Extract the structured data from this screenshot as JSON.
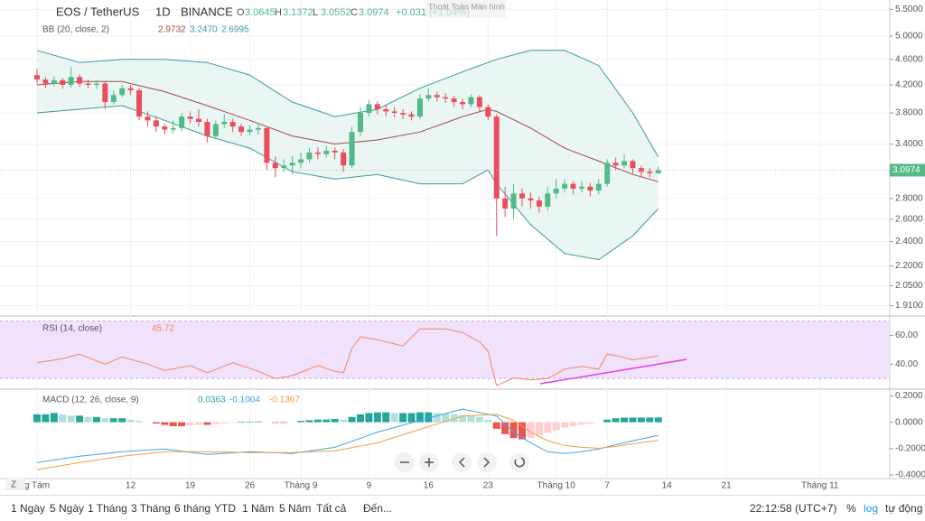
{
  "header": {
    "symbol": "EOS / TetherUS",
    "interval": "1D",
    "exchange": "BINANCE",
    "ohlc": [
      {
        "label": "O",
        "value": "3.0645"
      },
      {
        "label": "H",
        "value": "3.1372"
      },
      {
        "label": "L",
        "value": "3.0552"
      },
      {
        "label": "C",
        "value": "3.0974"
      }
    ],
    "change": "+0.031",
    "change_pct": "(+1.04%)",
    "tooltip": "Thoát Toàn Màn hình"
  },
  "chart_data": [
    {
      "type": "candlestick",
      "log_scale": true,
      "grid": true,
      "xlim": [
        -4.35,
        100.2
      ],
      "ylim": [
        1.87,
        5.65
      ],
      "up_color": "#53b987",
      "down_color": "#eb4d5c",
      "last_color": "#53b987",
      "yticks": [
        {
          "value": 1.91,
          "label": "1.9100"
        },
        {
          "value": 2.05,
          "label": "2.0500"
        },
        {
          "value": 2.2,
          "label": "2.2000"
        },
        {
          "value": 2.4,
          "label": "2.4000"
        },
        {
          "value": 2.6,
          "label": "2.6000"
        },
        {
          "value": 2.8,
          "label": "2.8000"
        },
        {
          "value": 3.4,
          "label": "3.4000"
        },
        {
          "value": 3.8,
          "label": "3.8000"
        },
        {
          "value": 4.2,
          "label": "4.2000"
        },
        {
          "value": 4.6,
          "label": "4.6000"
        },
        {
          "value": 5.0,
          "label": "5.0000"
        },
        {
          "value": 5.5,
          "label": "5.5000"
        }
      ],
      "xticks": [
        {
          "value": 0,
          "label": "g Tám"
        },
        {
          "value": 11,
          "label": "12"
        },
        {
          "value": 18,
          "label": "19"
        },
        {
          "value": 25,
          "label": "26"
        },
        {
          "value": 31,
          "label": "Tháng 9"
        },
        {
          "value": 39,
          "label": "9"
        },
        {
          "value": 46,
          "label": "16"
        },
        {
          "value": 53,
          "label": "23"
        },
        {
          "value": 61,
          "label": "Tháng 10"
        },
        {
          "value": 67,
          "label": "7"
        },
        {
          "value": 74,
          "label": "14"
        },
        {
          "value": 81,
          "label": "21"
        },
        {
          "value": 92,
          "label": "Tháng 11"
        }
      ],
      "candles": [
        [
          4.35,
          4.45,
          4.22,
          4.28
        ],
        [
          4.28,
          4.32,
          4.15,
          4.22
        ],
        [
          4.22,
          4.33,
          4.18,
          4.27
        ],
        [
          4.27,
          4.3,
          4.14,
          4.2
        ],
        [
          4.2,
          4.48,
          4.16,
          4.32
        ],
        [
          4.32,
          4.36,
          4.17,
          4.22
        ],
        [
          4.22,
          4.28,
          4.15,
          4.2
        ],
        [
          4.2,
          4.27,
          4.14,
          4.22
        ],
        [
          4.22,
          4.25,
          3.85,
          3.95
        ],
        [
          3.95,
          4.12,
          3.92,
          4.05
        ],
        [
          4.05,
          4.2,
          4.02,
          4.15
        ],
        [
          4.15,
          4.2,
          4.05,
          4.12
        ],
        [
          4.12,
          4.15,
          3.7,
          3.75
        ],
        [
          3.75,
          3.82,
          3.62,
          3.7
        ],
        [
          3.7,
          3.76,
          3.55,
          3.62
        ],
        [
          3.62,
          3.66,
          3.52,
          3.58
        ],
        [
          3.58,
          3.7,
          3.53,
          3.6
        ],
        [
          3.6,
          3.8,
          3.56,
          3.75
        ],
        [
          3.75,
          3.82,
          3.66,
          3.72
        ],
        [
          3.72,
          3.85,
          3.62,
          3.68
        ],
        [
          3.68,
          3.72,
          3.42,
          3.5
        ],
        [
          3.5,
          3.7,
          3.46,
          3.65
        ],
        [
          3.65,
          3.78,
          3.6,
          3.68
        ],
        [
          3.68,
          3.72,
          3.55,
          3.62
        ],
        [
          3.62,
          3.66,
          3.5,
          3.55
        ],
        [
          3.55,
          3.64,
          3.5,
          3.58
        ],
        [
          3.58,
          3.66,
          3.52,
          3.6
        ],
        [
          3.6,
          3.62,
          3.1,
          3.18
        ],
        [
          3.18,
          3.25,
          3.02,
          3.12
        ],
        [
          3.12,
          3.22,
          3.08,
          3.15
        ],
        [
          3.15,
          3.26,
          3.05,
          3.18
        ],
        [
          3.18,
          3.3,
          3.12,
          3.22
        ],
        [
          3.22,
          3.35,
          3.18,
          3.3
        ],
        [
          3.3,
          3.36,
          3.22,
          3.28
        ],
        [
          3.28,
          3.38,
          3.24,
          3.32
        ],
        [
          3.32,
          3.36,
          3.22,
          3.3
        ],
        [
          3.3,
          3.34,
          3.08,
          3.15
        ],
        [
          3.15,
          3.62,
          3.12,
          3.55
        ],
        [
          3.55,
          3.88,
          3.5,
          3.8
        ],
        [
          3.8,
          3.98,
          3.75,
          3.92
        ],
        [
          3.92,
          3.96,
          3.78,
          3.85
        ],
        [
          3.85,
          3.9,
          3.76,
          3.82
        ],
        [
          3.82,
          3.88,
          3.74,
          3.8
        ],
        [
          3.8,
          3.85,
          3.72,
          3.78
        ],
        [
          3.78,
          3.82,
          3.7,
          3.75
        ],
        [
          3.75,
          4.06,
          3.72,
          4.0
        ],
        [
          4.0,
          4.15,
          3.96,
          4.05
        ],
        [
          4.05,
          4.1,
          3.96,
          4.02
        ],
        [
          4.02,
          4.08,
          3.94,
          4.0
        ],
        [
          4.0,
          4.04,
          3.88,
          3.95
        ],
        [
          3.95,
          4.0,
          3.85,
          3.92
        ],
        [
          3.92,
          4.06,
          3.88,
          4.02
        ],
        [
          4.02,
          4.05,
          3.82,
          3.88
        ],
        [
          3.88,
          3.92,
          3.7,
          3.75
        ],
        [
          3.75,
          3.78,
          2.45,
          2.8
        ],
        [
          2.8,
          2.92,
          2.62,
          2.7
        ],
        [
          2.7,
          2.95,
          2.6,
          2.85
        ],
        [
          2.85,
          2.9,
          2.72,
          2.8
        ],
        [
          2.8,
          2.86,
          2.7,
          2.78
        ],
        [
          2.78,
          2.82,
          2.66,
          2.72
        ],
        [
          2.72,
          2.92,
          2.68,
          2.85
        ],
        [
          2.85,
          3.0,
          2.8,
          2.9
        ],
        [
          2.9,
          3.0,
          2.86,
          2.95
        ],
        [
          2.95,
          2.98,
          2.84,
          2.9
        ],
        [
          2.9,
          2.98,
          2.86,
          2.92
        ],
        [
          2.92,
          2.96,
          2.82,
          2.88
        ],
        [
          2.88,
          3.0,
          2.84,
          2.95
        ],
        [
          2.95,
          3.22,
          2.92,
          3.18
        ],
        [
          3.18,
          3.24,
          3.1,
          3.15
        ],
        [
          3.15,
          3.28,
          3.12,
          3.2
        ],
        [
          3.2,
          3.22,
          3.06,
          3.12
        ],
        [
          3.12,
          3.15,
          3.02,
          3.08
        ],
        [
          3.08,
          3.12,
          3.02,
          3.0645
        ],
        [
          3.0645,
          3.1372,
          3.0552,
          3.0974
        ]
      ],
      "overlay": {
        "name": "BB (20, close, 2)",
        "fill": "#e9f6f4",
        "legend_values": [
          "2.9732",
          "3.2470",
          "2.6995"
        ],
        "x": [
          0,
          5,
          10,
          15,
          20,
          25,
          30,
          35,
          40,
          45,
          50,
          53,
          54,
          58,
          62,
          66,
          70,
          73
        ],
        "series": [
          {
            "color": "#a04848",
            "values": [
              4.2,
              4.25,
              4.25,
              4.1,
              3.9,
              3.7,
              3.5,
              3.4,
              3.45,
              3.55,
              3.75,
              3.85,
              3.82,
              3.6,
              3.35,
              3.2,
              3.05,
              2.9732
            ]
          },
          {
            "color": "#3a9a9a",
            "values": [
              4.75,
              4.55,
              4.6,
              4.6,
              4.55,
              4.35,
              3.95,
              3.75,
              3.85,
              4.15,
              4.4,
              4.55,
              4.6,
              4.75,
              4.75,
              4.5,
              3.8,
              3.247
            ]
          },
          {
            "color": "#3a9a9a",
            "values": [
              3.8,
              3.85,
              3.9,
              3.7,
              3.5,
              3.35,
              3.08,
              3.0,
              3.05,
              2.95,
              2.95,
              3.1,
              2.95,
              2.55,
              2.3,
              2.25,
              2.45,
              2.6995
            ]
          }
        ]
      }
    },
    {
      "type": "line",
      "name": "RSI (14, close)",
      "color": "#f2875a",
      "xlim": [
        -4.35,
        100.2
      ],
      "ylim": [
        23.2,
        71.6
      ],
      "yticks": [
        {
          "value": 60,
          "label": "60.00"
        },
        {
          "value": 40,
          "label": "40.00"
        }
      ],
      "band": [
        30,
        70
      ],
      "band_color": "#f1e2fb",
      "x": [
        0,
        3,
        5,
        8,
        10,
        13,
        15,
        18,
        20,
        23,
        26,
        28,
        30,
        33,
        35,
        36,
        37,
        38,
        40,
        43,
        45,
        48,
        50,
        52,
        53,
        54,
        56,
        58,
        60,
        62,
        64,
        66,
        67,
        68,
        70,
        73
      ],
      "values": [
        41,
        43.8,
        47,
        40,
        45,
        40,
        35.5,
        39,
        34,
        41,
        35,
        30,
        32,
        39,
        35,
        34,
        51,
        59,
        57,
        52.6,
        64.5,
        64.5,
        62,
        55.5,
        49,
        25,
        30.5,
        29,
        30,
        36.5,
        38.5,
        36.5,
        47,
        46,
        43,
        45.72
      ]
    },
    {
      "type": "macd",
      "name": "MACD (12, 26, close, 9)",
      "xlim": [
        -4.35,
        100.2
      ],
      "ylim": [
        -0.427,
        0.237
      ],
      "yticks": [
        {
          "value": 0.2,
          "label": "0.2000"
        },
        {
          "value": 0,
          "label": "0.0000"
        },
        {
          "value": -0.2,
          "label": "-0.2000"
        },
        {
          "value": -0.4,
          "label": "-0.4000"
        }
      ],
      "hist_colors": [
        "#26a69a",
        "#b2dfdb",
        "#ef5350",
        "#ffcdd2"
      ],
      "histogram": [
        0.06,
        0.06,
        0.07,
        0.06,
        0.05,
        0.05,
        0.04,
        0.04,
        0.03,
        0.03,
        0.03,
        0.02,
        0.01,
        0,
        -0.01,
        -0.02,
        -0.03,
        -0.03,
        -0.025,
        -0.02,
        -0.02,
        -0.015,
        -0.01,
        -0.005,
        0.005,
        0.005,
        0.005,
        0,
        -0.005,
        -0.005,
        0,
        0.01,
        0.015,
        0.02,
        0.02,
        0.025,
        0.02,
        0.04,
        0.06,
        0.07,
        0.075,
        0.075,
        0.07,
        0.07,
        0.07,
        0.075,
        0.075,
        0.07,
        0.065,
        0.06,
        0.055,
        0.05,
        0.04,
        0.02,
        -0.05,
        -0.09,
        -0.12,
        -0.13,
        -0.12,
        -0.1,
        -0.08,
        -0.06,
        -0.04,
        -0.03,
        -0.02,
        -0.01,
        0,
        0.02,
        0.03,
        0.035,
        0.035,
        0.036,
        0.036,
        0.0363
      ],
      "x": [
        0,
        5,
        10,
        15,
        20,
        25,
        30,
        35,
        40,
        45,
        50,
        54,
        56,
        58,
        60,
        62,
        64,
        66,
        68,
        70,
        73
      ],
      "series": [
        {
          "color": "#3fa7e4",
          "values": [
            -0.305,
            -0.258,
            -0.224,
            -0.203,
            -0.244,
            -0.224,
            -0.237,
            -0.19,
            -0.075,
            0.014,
            0.1,
            0.047,
            -0.075,
            -0.156,
            -0.224,
            -0.237,
            -0.224,
            -0.203,
            -0.17,
            -0.14,
            -0.1004
          ]
        },
        {
          "color": "#f39c45",
          "values": [
            -0.36,
            -0.305,
            -0.258,
            -0.224,
            -0.224,
            -0.23,
            -0.23,
            -0.217,
            -0.156,
            -0.054,
            0.047,
            0.06,
            0.014,
            -0.075,
            -0.14,
            -0.176,
            -0.19,
            -0.197,
            -0.183,
            -0.163,
            -0.1367
          ]
        }
      ]
    }
  ],
  "toolbar": {
    "ranges": [
      "1 Ngày",
      "5 Ngày",
      "1 Tháng",
      "3 Tháng",
      "6 tháng",
      "YTD",
      "1 Năm",
      "5 Năm",
      "Tất cả"
    ],
    "goto": "Đến...",
    "clock": "22:12:58 (UTC+7)",
    "percent": "%",
    "log": "log",
    "auto": "tự động"
  }
}
